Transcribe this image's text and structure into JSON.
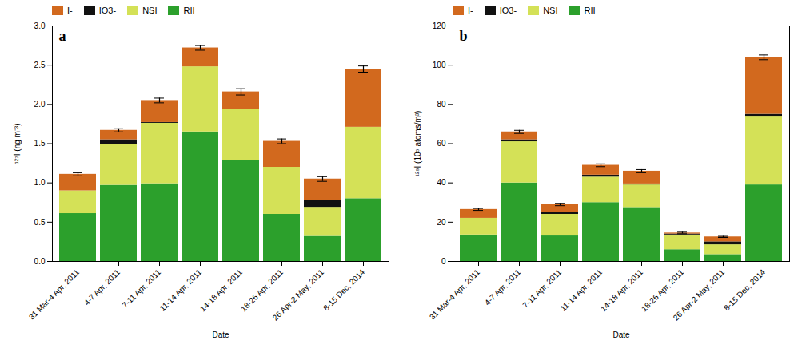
{
  "chart_data": [
    {
      "type": "bar",
      "stacked": true,
      "categories": [
        "31 Mar-4 Apr, 2011",
        "4-7 Apr, 2011",
        "7-11 Apr, 2011",
        "11-14 Apr, 2011",
        "14-18 Apr, 2011",
        "18-26 Apr, 2011",
        "26 Apr-2 May, 2011",
        "8-15 Dec, 2014"
      ],
      "series": [
        {
          "name": "RII",
          "color": "#2ca02c",
          "values": [
            0.61,
            0.97,
            0.99,
            1.65,
            1.29,
            0.6,
            0.32,
            0.8
          ]
        },
        {
          "name": "NSI",
          "color": "#d4e157",
          "values": [
            0.29,
            0.52,
            0.77,
            0.83,
            0.65,
            0.6,
            0.37,
            0.91
          ]
        },
        {
          "name": "IO3-",
          "color": "#111111",
          "values": [
            0.0,
            0.06,
            0.01,
            0.0,
            0.0,
            0.0,
            0.09,
            0.0
          ]
        },
        {
          "name": "I-",
          "color": "#d2691e",
          "values": [
            0.21,
            0.12,
            0.28,
            0.24,
            0.22,
            0.33,
            0.27,
            0.74
          ]
        }
      ],
      "errors": [
        0.02,
        0.02,
        0.03,
        0.03,
        0.04,
        0.03,
        0.03,
        0.04
      ],
      "xlabel": "Date",
      "ylabel": "¹²⁷I (ng m⁻³)",
      "ylim": [
        0,
        3
      ],
      "yticks": [
        {
          "value": 0,
          "label": "0.0"
        },
        0.5,
        {
          "value": 1,
          "label": "1.0"
        },
        1.5,
        {
          "value": 2,
          "label": "2.0"
        },
        2.5,
        {
          "value": 3,
          "label": "3.0"
        }
      ],
      "legend": "upper left",
      "annotations": [
        "a"
      ]
    },
    {
      "type": "bar",
      "stacked": true,
      "categories": [
        "31 Mar-4 Apr, 2011",
        "4-7 Apr, 2011",
        "7-11 Apr, 2011",
        "11-14 Apr, 2011",
        "14-18 Apr, 2011",
        "18-26 Apr, 2011",
        "26 Apr-2 May, 2011",
        "8-15 Dec, 2014"
      ],
      "series": [
        {
          "name": "RII",
          "color": "#2ca02c",
          "values": [
            13.5,
            40.0,
            13.0,
            30.0,
            27.5,
            6.0,
            3.5,
            39.0
          ]
        },
        {
          "name": "NSI",
          "color": "#d4e157",
          "values": [
            8.5,
            21.0,
            11.0,
            13.0,
            11.5,
            7.5,
            5.0,
            35.0
          ]
        },
        {
          "name": "IO3-",
          "color": "#111111",
          "values": [
            0.0,
            1.0,
            1.0,
            1.0,
            0.5,
            0.5,
            1.5,
            1.0
          ]
        },
        {
          "name": "I-",
          "color": "#d2691e",
          "values": [
            4.5,
            4.0,
            4.0,
            5.0,
            6.5,
            0.5,
            2.5,
            29.0
          ]
        }
      ],
      "errors": [
        0.5,
        0.8,
        0.6,
        0.7,
        0.8,
        0.4,
        0.3,
        1.2
      ],
      "xlabel": "Date",
      "ylabel": "¹²⁹I (10⁵ atoms/m³)",
      "ylim": [
        0,
        120
      ],
      "yticks": [
        0,
        20,
        40,
        60,
        80,
        100,
        120
      ],
      "legend": "upper left",
      "annotations": [
        "b"
      ]
    }
  ]
}
